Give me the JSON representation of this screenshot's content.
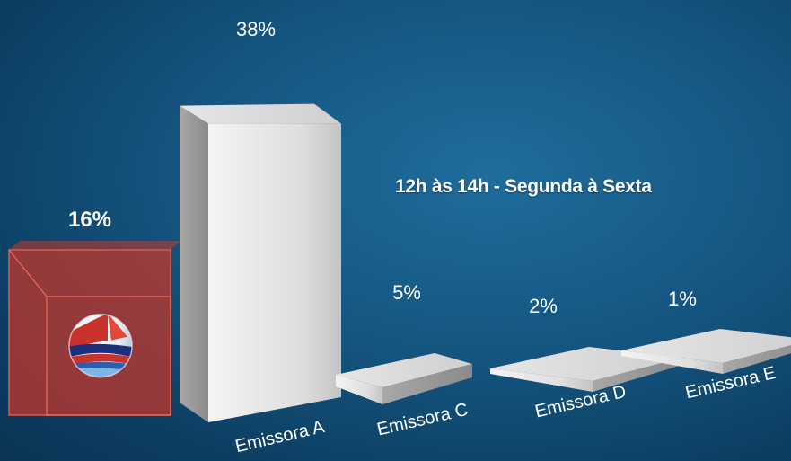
{
  "chart_data": {
    "type": "bar",
    "title": "12h às 14h - Segunda à Sexta",
    "unit": "%",
    "categories": [
      "",
      "Emissora A",
      "Emissora C",
      "Emissora D",
      "Emissora E"
    ],
    "values": [
      16,
      38,
      5,
      2,
      1
    ],
    "value_labels": [
      "16%",
      "38%",
      "5%",
      "2%",
      "1%"
    ],
    "highlight_index": 0,
    "colors": {
      "highlight": "#c9362a",
      "bars": "#d8d8d8",
      "labels": "#ffffff",
      "background": "#14557f"
    },
    "grid": false,
    "legend": "none"
  },
  "highlight_logo": "broadcaster-logo-icon"
}
